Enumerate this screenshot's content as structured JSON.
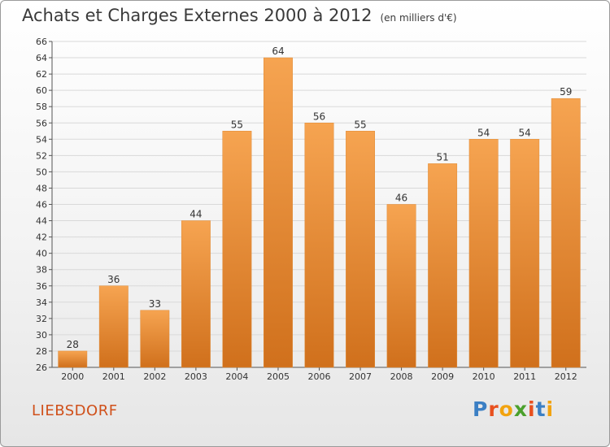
{
  "header": {
    "title": "Achats et Charges Externes 2000 à 2012",
    "subtitle": "(en milliers d'€)"
  },
  "footer": {
    "commune": "LIEBSDORF",
    "logo_text": "Proxiti"
  },
  "colors": {
    "bar_top": "#f6a451",
    "bar_bottom": "#d0701c",
    "grid": "#d9d9d9",
    "commune_text": "#d0501a",
    "logo_letters": [
      "#3b7fc4",
      "#e8501e",
      "#f2a30f",
      "#4aa02c",
      "#e8501e",
      "#3b7fc4",
      "#f2a30f"
    ]
  },
  "chart_data": {
    "type": "bar",
    "categories": [
      "2000",
      "2001",
      "2002",
      "2003",
      "2004",
      "2005",
      "2006",
      "2007",
      "2008",
      "2009",
      "2010",
      "2011",
      "2012"
    ],
    "values": [
      28,
      36,
      33,
      44,
      55,
      64,
      56,
      55,
      46,
      51,
      54,
      54,
      59
    ],
    "ylim": [
      26,
      66
    ],
    "ytick_step": 2,
    "grid": true
  }
}
